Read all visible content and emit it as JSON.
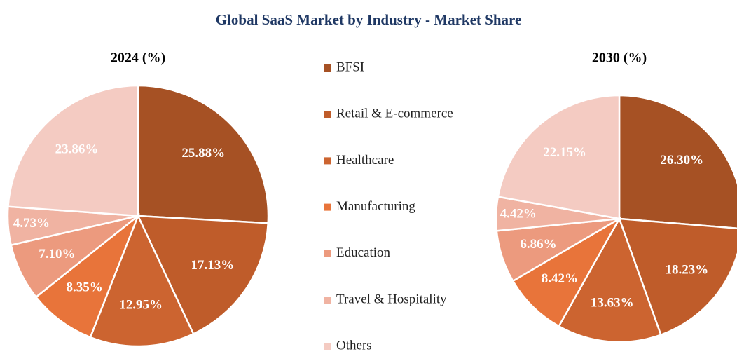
{
  "title": "Global SaaS Market by Industry - Market Share",
  "chart_data": [
    {
      "type": "pie",
      "title": "2024 (%)",
      "categories": [
        "BFSI",
        "Retail & E-commerce",
        "Healthcare",
        "Manufacturing",
        "Education",
        "Travel & Hospitality",
        "Others"
      ],
      "values": [
        25.88,
        17.13,
        12.95,
        8.35,
        7.1,
        4.73,
        23.86
      ],
      "value_labels": [
        "25.88%",
        "17.13%",
        "12.95%",
        "8.35%",
        "7.10%",
        "4.73%",
        "23.86%"
      ],
      "colors": [
        "#a65124",
        "#bf5c2a",
        "#cc6430",
        "#e8743a",
        "#ec9a7e",
        "#f0b3a2",
        "#f4cbc2"
      ]
    },
    {
      "type": "pie",
      "title": "2030 (%)",
      "categories": [
        "BFSI",
        "Retail & E-commerce",
        "Healthcare",
        "Manufacturing",
        "Education",
        "Travel & Hospitality",
        "Others"
      ],
      "values": [
        26.3,
        18.23,
        13.63,
        8.42,
        6.86,
        4.42,
        22.15
      ],
      "value_labels": [
        "26.30%",
        "18.23%",
        "13.63%",
        "8.42%",
        "6.86%",
        "4.42%",
        "22.15%"
      ],
      "colors": [
        "#a65124",
        "#bf5c2a",
        "#cc6430",
        "#e8743a",
        "#ec9a7e",
        "#f0b3a2",
        "#f4cbc2"
      ]
    }
  ]
}
